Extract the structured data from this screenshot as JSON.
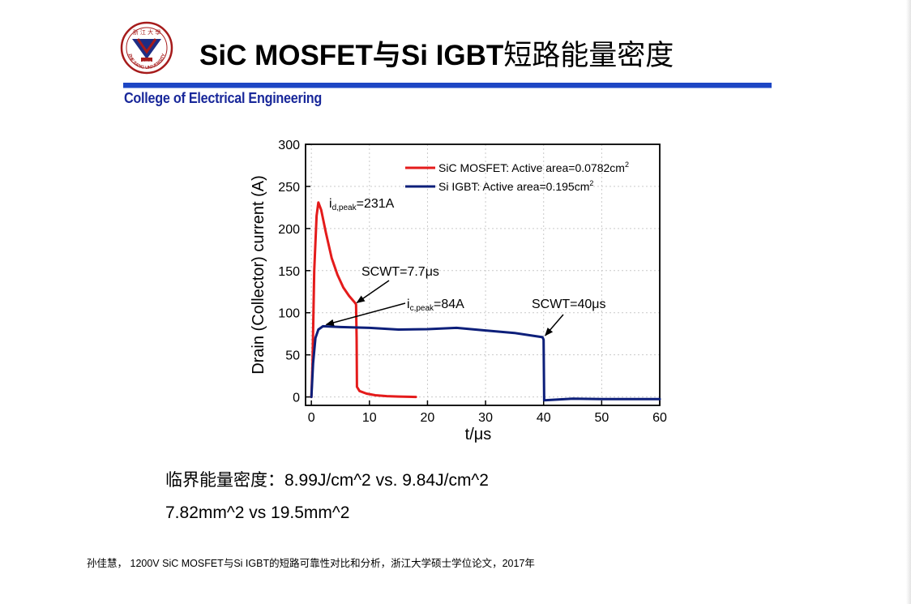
{
  "header": {
    "title_en": "SiC MOSFET与Si IGBT",
    "title_cn": "短路能量密度",
    "college": "College of Electrical Engineering",
    "logo": {
      "icon": "university-seal",
      "color": "#a61b1b",
      "text": "ZHEJIANG UNIVERSITY",
      "year": "1897"
    }
  },
  "stats": {
    "line1_cn": "临界能量密度：",
    "line1_values": "8.99J/cm^2 vs. 9.84J/cm^2",
    "line2": "7.82mm^2 vs 19.5mm^2"
  },
  "citation": {
    "author": "孙佳慧，",
    "title_en": " 1200V SiC MOSFET",
    "mid_cn": "与",
    "title_en2": "Si IGBT",
    "rest_cn": "的短路可靠性对比和分析，浙江大学硕士学位论文，",
    "year": "2017",
    "year_suffix": "年"
  },
  "colors": {
    "accent_rule": "#1d46c4",
    "college_text": "#19289a",
    "sic": "#e41b1b",
    "igbt": "#0d1f7a"
  },
  "chart_data": {
    "type": "line",
    "xlabel": "t/μs",
    "ylabel": "Drain (Collector) current (A)",
    "xlim": [
      -1,
      60
    ],
    "ylim": [
      -10,
      300
    ],
    "xticks": [
      0,
      10,
      20,
      30,
      40,
      50,
      60
    ],
    "yticks": [
      0,
      50,
      100,
      150,
      200,
      250,
      300
    ],
    "grid": true,
    "legend_position": "top-right",
    "series": [
      {
        "name": "SiC MOSFET: Active area=0.0782cm",
        "superscript": "2",
        "color": "#e41b1b",
        "points": [
          [
            0,
            0
          ],
          [
            0.2,
            40
          ],
          [
            0.5,
            150
          ],
          [
            0.9,
            215
          ],
          [
            1.2,
            231
          ],
          [
            1.7,
            222
          ],
          [
            2.5,
            195
          ],
          [
            3.5,
            165
          ],
          [
            4.5,
            145
          ],
          [
            5.5,
            130
          ],
          [
            6.5,
            120
          ],
          [
            7.5,
            112
          ],
          [
            7.7,
            110
          ],
          [
            7.8,
            70
          ],
          [
            7.85,
            12
          ],
          [
            8.3,
            7
          ],
          [
            9.5,
            4
          ],
          [
            11,
            2
          ],
          [
            13,
            1
          ],
          [
            15,
            0.5
          ],
          [
            18,
            0
          ]
        ]
      },
      {
        "name": "Si IGBT: Active area=0.195cm",
        "superscript": "2",
        "color": "#0d1f7a",
        "points": [
          [
            0,
            0
          ],
          [
            0.3,
            40
          ],
          [
            0.7,
            70
          ],
          [
            1.2,
            80
          ],
          [
            2,
            84
          ],
          [
            5,
            83
          ],
          [
            10,
            82
          ],
          [
            15,
            80
          ],
          [
            20,
            80.5
          ],
          [
            25,
            82
          ],
          [
            30,
            79
          ],
          [
            35,
            76
          ],
          [
            39.8,
            71
          ],
          [
            40,
            68
          ],
          [
            40.1,
            -4
          ],
          [
            45,
            -2
          ],
          [
            50,
            -2.5
          ],
          [
            55,
            -2.5
          ],
          [
            60,
            -2.5
          ]
        ]
      }
    ],
    "annotations": [
      {
        "id": "peak-sic",
        "main": "i",
        "sub": "d,peak",
        "rest": "=231A",
        "point": [
          1.2,
          231
        ]
      },
      {
        "id": "scwt-sic",
        "text": "SCWT=7.7μs",
        "point": [
          7.7,
          110
        ]
      },
      {
        "id": "peak-igbt",
        "main": "i",
        "sub": "c,peak",
        "rest": "=84A",
        "point": [
          2,
          84
        ]
      },
      {
        "id": "scwt-igbt",
        "text": "SCWT=40μs",
        "point": [
          40,
          71
        ]
      }
    ]
  }
}
